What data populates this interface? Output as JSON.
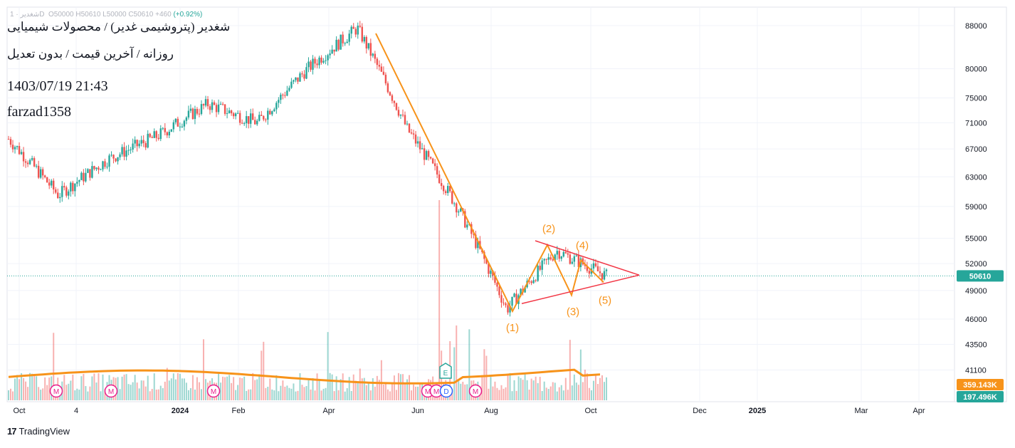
{
  "header": {
    "ticker_line_left": "شغدیر · 1D",
    "ohlc": "O50000  H50610  L50000  C50610  +460",
    "change_pct": "(+0.92%)",
    "title_line1": "شغدیر (پتروشیمی غدیر) / محصولات شیمیایی",
    "title_line2": "روزانه / آخرین قیمت / بدون تعدیل",
    "datetime": "1403/07/19 21:43",
    "author": "farzad1358"
  },
  "branding": {
    "logo_text": "TradingView",
    "logo_mark": "17"
  },
  "colors": {
    "up": "#26a69a",
    "down": "#ef5350",
    "wave_line": "#f7931a",
    "triangle_line": "#f23645",
    "ma_line": "#f7931a",
    "last_price_badge": "#26a69a",
    "ma_badge": "#f7931a",
    "vol_badge": "#26a69a",
    "event_m": "#e91e8c",
    "event_e": "#26a69a",
    "event_d": "#2962ff"
  },
  "price_scale": {
    "ticks": [
      "88000",
      "80000",
      "75000",
      "71000",
      "67000",
      "63000",
      "59000",
      "55000",
      "52000",
      "49000",
      "46000",
      "43500",
      "41100"
    ],
    "last_price": "50610",
    "ma_value": "359.143K",
    "volume_value": "197.496K"
  },
  "time_axis": {
    "labels": [
      "Oct",
      "4",
      "2024",
      "Feb",
      "Apr",
      "Jun",
      "Aug",
      "Oct",
      "Dec",
      "2025",
      "Mar",
      "Apr"
    ]
  },
  "wave_labels": [
    "(1)",
    "(2)",
    "(3)",
    "(4)",
    "(5)"
  ],
  "events": [
    "M",
    "M",
    "M",
    "M",
    "M",
    "D",
    "E",
    "M"
  ],
  "chart_data": {
    "type": "candlestick",
    "scale": "log",
    "x_axis": "time (daily)",
    "y_ticks": [
      88000,
      80000,
      75000,
      71000,
      67000,
      63000,
      59000,
      55000,
      52000,
      49000,
      46000,
      43500,
      41100
    ],
    "last_close": 50610,
    "trend_path": [
      {
        "date": "Sep 2023",
        "close": 68500
      },
      {
        "date": "Nov 2023",
        "close": 60500
      },
      {
        "date": "Dec 2023",
        "close": 65500
      },
      {
        "date": "Jan 2024",
        "close": 69000
      },
      {
        "date": "Feb 2024",
        "close": 74000
      },
      {
        "date": "Mar 2024",
        "close": 71000
      },
      {
        "date": "Apr 2024",
        "close": 80000
      },
      {
        "date": "May 2024",
        "close": 87500
      },
      {
        "date": "Jun 2024",
        "close": 70000
      },
      {
        "date": "Jul 2024",
        "close": 59000
      },
      {
        "date": "Aug 2024",
        "close": 47000
      },
      {
        "date": "Sep 2024",
        "close": 53500
      },
      {
        "date": "Oct 2024",
        "close": 50610
      }
    ],
    "wave_points": [
      {
        "label": "(1)",
        "price": 46800
      },
      {
        "label": "(2)",
        "price": 54200
      },
      {
        "label": "(3)",
        "price": 48500
      },
      {
        "label": "(4)",
        "price": 52400
      },
      {
        "label": "(5)",
        "price": 49900
      }
    ],
    "volume_ma": 359143,
    "last_volume": 197496
  }
}
